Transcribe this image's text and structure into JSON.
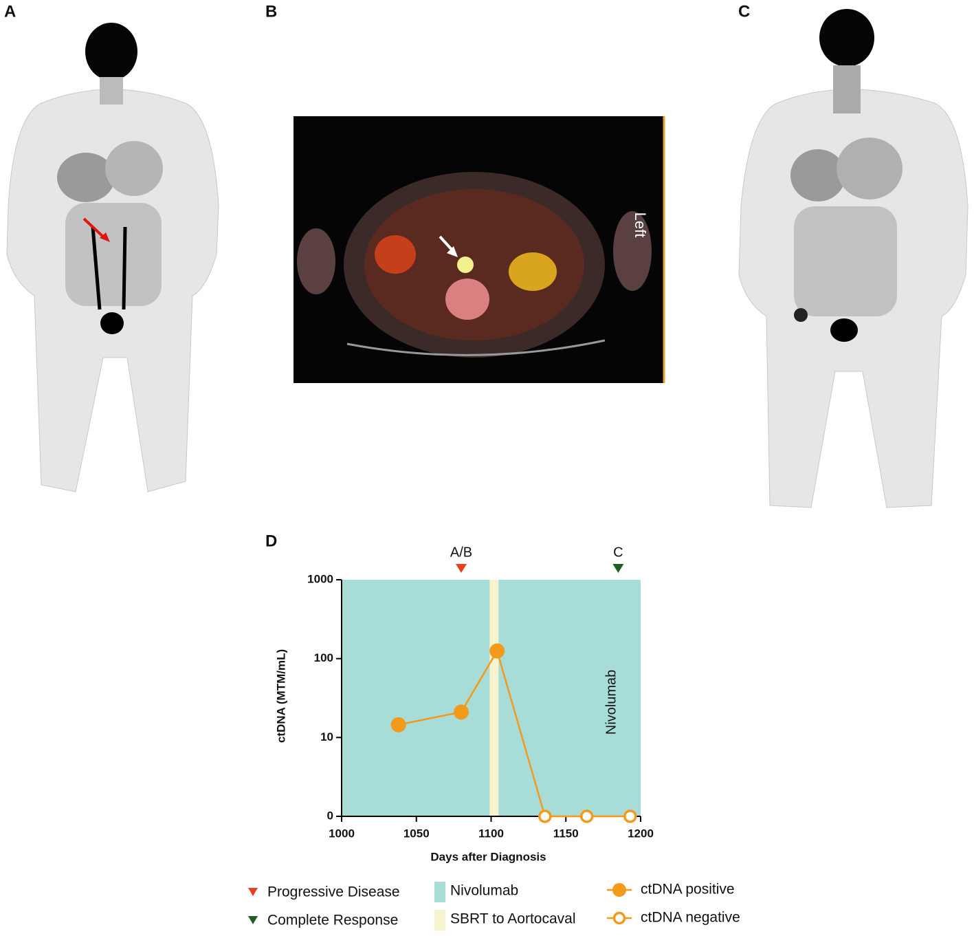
{
  "panel_labels": [
    "A",
    "B",
    "C",
    "D"
  ],
  "scan_text": "Left",
  "chart_data": {
    "type": "line",
    "x_label": "Days after Diagnosis",
    "y_label": "ctDNA  (MTM/mL)",
    "xlim": [
      1000,
      1200
    ],
    "xticks": [
      1000,
      1050,
      1100,
      1150,
      1200
    ],
    "ylim": [
      0,
      1000
    ],
    "yticks": [
      0,
      10,
      100,
      1000
    ],
    "log_y": true,
    "regions": [
      {
        "name": "Nivolumab",
        "x": [
          1000,
          1200
        ],
        "color": "#a8ddd7"
      },
      {
        "name": "SBRT to Aortocaval",
        "x": [
          1099,
          1105
        ],
        "color": "#f6f3cf"
      }
    ],
    "events": [
      {
        "name": "Progressive Disease",
        "label": "A/B",
        "x": 1080,
        "color": "#e8401c"
      },
      {
        "name": "Complete Response",
        "label": "C",
        "x": 1185,
        "color": "#1f5d26"
      }
    ],
    "series": [
      {
        "name": "ctDNA positive",
        "color": "#f39a1c",
        "filled": true,
        "x": [
          1038,
          1080,
          1104
        ],
        "values": [
          14.5,
          21,
          125
        ]
      },
      {
        "name": "ctDNA negative",
        "color": "#f39a1c",
        "filled": false,
        "x": [
          1136,
          1164,
          1193
        ],
        "values": [
          0,
          0,
          0
        ]
      }
    ]
  }
}
